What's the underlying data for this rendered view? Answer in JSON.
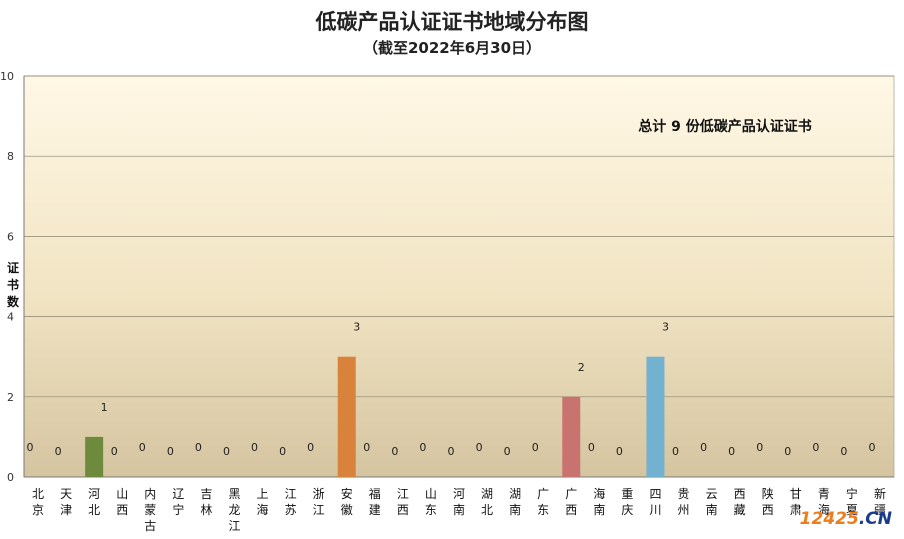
{
  "chart_data": {
    "type": "bar",
    "title": "低碳产品认证证书地域分布图",
    "subtitle": "（截至2022年6月30日）",
    "ylabel": "证书数",
    "xlabel": "",
    "ylim": [
      0,
      10
    ],
    "yticks": [
      0,
      2,
      4,
      6,
      8,
      10
    ],
    "grid": true,
    "annotation": "总计  9  份低碳产品认证证书",
    "categories": [
      "北京",
      "天津",
      "河北",
      "山西",
      "内蒙古",
      "辽宁",
      "吉林",
      "黑龙江",
      "上海",
      "江苏",
      "浙江",
      "安徽",
      "福建",
      "江西",
      "山东",
      "河南",
      "湖北",
      "湖南",
      "广东",
      "广西",
      "海南",
      "重庆",
      "四川",
      "贵州",
      "云南",
      "西藏",
      "陕西",
      "甘肃",
      "青海",
      "宁夏",
      "新疆"
    ],
    "values": [
      0,
      0,
      1,
      0,
      0,
      0,
      0,
      0,
      0,
      0,
      0,
      3,
      0,
      0,
      0,
      0,
      0,
      0,
      0,
      2,
      0,
      0,
      3,
      0,
      0,
      0,
      0,
      0,
      0,
      0,
      0
    ],
    "bar_colors": {
      "河北": "#6e8b3d",
      "安徽": "#d9823b",
      "广西": "#c97371",
      "四川": "#72b1cf"
    }
  },
  "watermark": {
    "brand": "12425",
    "domain": ".CN"
  }
}
